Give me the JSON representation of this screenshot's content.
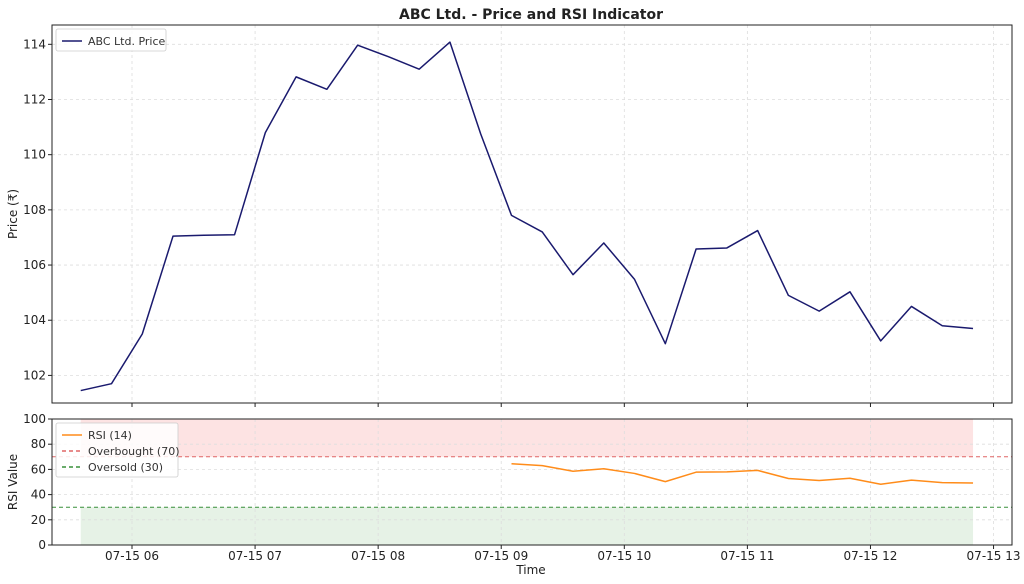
{
  "chart_data": {
    "title": "ABC Ltd. - Price and RSI Indicator",
    "xlabel": "Time",
    "x_ticks": [
      "07-15 06",
      "07-15 07",
      "07-15 08",
      "07-15 09",
      "07-15 10",
      "07-15 11",
      "07-15 12",
      "07-15 13"
    ],
    "x_range": [
      "2023-07-15 05:21",
      "2023-07-15 13:09"
    ],
    "x": [
      "05:35",
      "05:50",
      "06:05",
      "06:20",
      "06:35",
      "06:50",
      "07:05",
      "07:20",
      "07:35",
      "07:50",
      "08:05",
      "08:20",
      "08:35",
      "08:50",
      "09:05",
      "09:20",
      "09:35",
      "09:50",
      "10:05",
      "10:20",
      "10:35",
      "10:50",
      "11:05",
      "11:20",
      "11:35",
      "11:50",
      "12:05",
      "12:20",
      "12:35",
      "12:50"
    ],
    "price_panel": {
      "type": "line",
      "ylabel": "Price (₹)",
      "ylim": [
        101.0,
        114.7
      ],
      "y_ticks": [
        102,
        104,
        106,
        108,
        110,
        112,
        114
      ],
      "legend_position": "top-left",
      "grid": true,
      "series": [
        {
          "name": "ABC Ltd. Price",
          "color": "#1a1a6e",
          "values": [
            101.45,
            101.7,
            103.5,
            107.05,
            107.08,
            107.1,
            110.8,
            112.82,
            112.37,
            113.97,
            113.55,
            113.1,
            114.08,
            110.75,
            107.8,
            107.2,
            105.65,
            106.8,
            105.48,
            103.15,
            106.58,
            106.62,
            107.25,
            104.9,
            104.33,
            105.03,
            103.25,
            104.5,
            103.8,
            103.7
          ]
        }
      ]
    },
    "rsi_panel": {
      "type": "line",
      "ylabel": "RSI Value",
      "ylim": [
        0,
        100
      ],
      "y_ticks": [
        0,
        20,
        40,
        60,
        80,
        100
      ],
      "legend_position": "top-left",
      "grid": true,
      "overbought_level": 70,
      "oversold_level": 30,
      "series": [
        {
          "name": "RSI (14)",
          "color": "#ff8c1a",
          "values": [
            null,
            null,
            null,
            null,
            null,
            null,
            null,
            null,
            null,
            null,
            null,
            null,
            null,
            null,
            64.5,
            63.0,
            58.5,
            60.5,
            56.8,
            50.3,
            57.8,
            58.0,
            59.2,
            52.8,
            51.2,
            53.0,
            48.2,
            51.5,
            49.5,
            49.2
          ]
        }
      ],
      "reference_lines": [
        {
          "name": "Overbought (70)",
          "value": 70,
          "color": "#e06666",
          "style": "dashed"
        },
        {
          "name": "Oversold (30)",
          "value": 30,
          "color": "#38903a",
          "style": "dashed"
        }
      ],
      "bands": [
        {
          "from": 70,
          "to": 100,
          "color": "#fde3e3"
        },
        {
          "from": 0,
          "to": 30,
          "color": "#e6f2e6"
        }
      ]
    }
  }
}
